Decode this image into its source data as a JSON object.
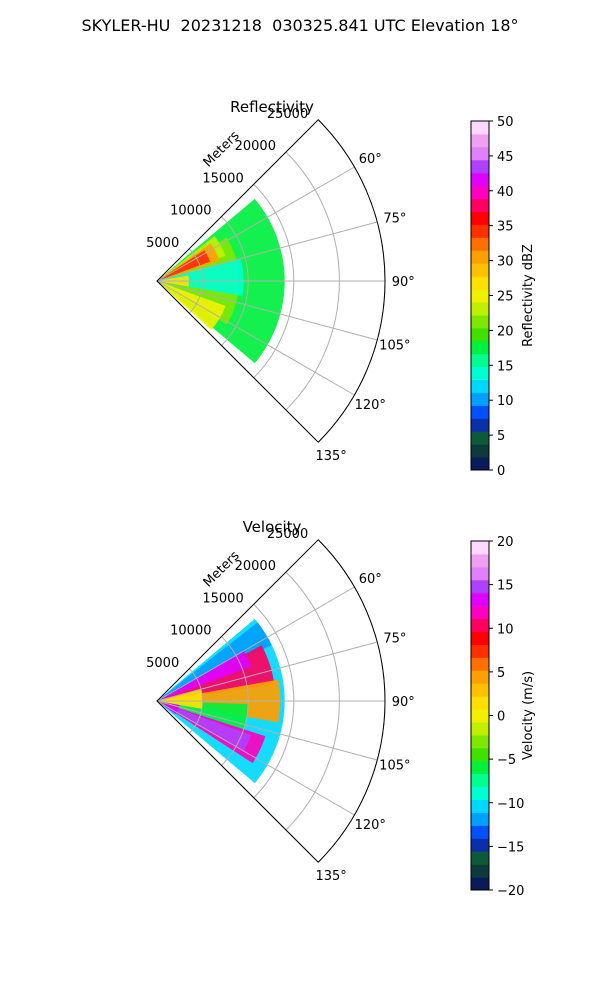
{
  "figure": {
    "title": "SKYLER-HU  20231218  030325.841 UTC Elevation 18°"
  },
  "chart_data": [
    {
      "type": "heatmap",
      "subtype": "polar-sector (PPI)",
      "title": "Reflectivity",
      "range_label": "Meters",
      "r_ticks": [
        5000,
        10000,
        15000,
        20000,
        25000
      ],
      "r_tick_labels": [
        "5000",
        "10000",
        "15000",
        "20000",
        "25000"
      ],
      "rlim": [
        0,
        25000
      ],
      "theta_ticks": [
        60,
        75,
        90,
        105,
        120,
        135
      ],
      "theta_tick_labels": [
        "60°",
        "75°",
        "90°",
        "105°",
        "120°",
        "135°"
      ],
      "theta_range": [
        45,
        135
      ],
      "grid": true,
      "colorbar": {
        "label": "Reflectivity dBZ",
        "min": 0,
        "max": 50,
        "ticks": [
          0,
          5,
          10,
          15,
          20,
          25,
          30,
          35,
          40,
          45,
          50
        ],
        "tick_labels": [
          "0",
          "5",
          "10",
          "15",
          "20",
          "25",
          "30",
          "35",
          "40",
          "45",
          "50"
        ],
        "colors": [
          "#0a1a5a",
          "#0d3a3a",
          "#0d5a3a",
          "#0a2fa8",
          "#0050ff",
          "#00a0ff",
          "#00d8ff",
          "#00ffd0",
          "#00ff90",
          "#00f040",
          "#40e000",
          "#80e800",
          "#c0f000",
          "#f0f000",
          "#ffe000",
          "#ffc000",
          "#ffa000",
          "#ff7000",
          "#ff3000",
          "#ff0000",
          "#ff0060",
          "#ff00c0",
          "#e000ff",
          "#b040ff",
          "#e080ff",
          "#f0a0f0",
          "#ffd8ff"
        ]
      },
      "echo_regions": [
        {
          "from_deg": 50,
          "to_deg": 130,
          "r_max": 14000,
          "value": 17
        },
        {
          "from_deg": 58,
          "to_deg": 122,
          "r_max": 9000,
          "value": 21
        },
        {
          "from_deg": 52,
          "to_deg": 70,
          "r_max": 8000,
          "value": 24
        },
        {
          "from_deg": 110,
          "to_deg": 132,
          "r_max": 8000,
          "value": 25
        },
        {
          "from_deg": 55,
          "to_deg": 72,
          "r_max": 7200,
          "value": 30
        },
        {
          "from_deg": 57,
          "to_deg": 70,
          "r_max": 6200,
          "value": 35
        },
        {
          "from_deg": 75,
          "to_deg": 100,
          "r_max": 9500,
          "value": 13
        },
        {
          "from_deg": 80,
          "to_deg": 100,
          "r_max": 3500,
          "value": 27
        }
      ]
    },
    {
      "type": "heatmap",
      "subtype": "polar-sector (PPI)",
      "title": "Velocity",
      "range_label": "Meters",
      "r_ticks": [
        5000,
        10000,
        15000,
        20000,
        25000
      ],
      "r_tick_labels": [
        "5000",
        "10000",
        "15000",
        "20000",
        "25000"
      ],
      "rlim": [
        0,
        25000
      ],
      "theta_ticks": [
        60,
        75,
        90,
        105,
        120,
        135
      ],
      "theta_tick_labels": [
        "60°",
        "75°",
        "90°",
        "105°",
        "120°",
        "135°"
      ],
      "theta_range": [
        45,
        135
      ],
      "grid": true,
      "colorbar": {
        "label": "Velocity (m/s)",
        "min": -20,
        "max": 20,
        "ticks": [
          -20,
          -15,
          -10,
          -5,
          0,
          5,
          10,
          15,
          20
        ],
        "tick_labels": [
          "−20",
          "−15",
          "−10",
          "−5",
          "0",
          "5",
          "10",
          "15",
          "20"
        ],
        "colors": [
          "#0a1a5a",
          "#0d3a3a",
          "#0d5a3a",
          "#0a2fa8",
          "#0050ff",
          "#00a0ff",
          "#00d8ff",
          "#00ffd0",
          "#00ff90",
          "#00f040",
          "#40e000",
          "#80e800",
          "#c0f000",
          "#f0f000",
          "#ffe000",
          "#ffc000",
          "#ffa000",
          "#ff7000",
          "#ff3000",
          "#ff0000",
          "#ff0060",
          "#ff00c0",
          "#e000ff",
          "#b040ff",
          "#e080ff",
          "#f0a0f0",
          "#ffd8ff"
        ]
      },
      "echo_regions": [
        {
          "from_deg": 50,
          "to_deg": 130,
          "r_max": 14000,
          "value": -11
        },
        {
          "from_deg": 52,
          "to_deg": 64,
          "r_max": 14000,
          "value": -12
        },
        {
          "from_deg": 62,
          "to_deg": 82,
          "r_max": 13000,
          "value": 10
        },
        {
          "from_deg": 60,
          "to_deg": 70,
          "r_max": 11000,
          "value": 14
        },
        {
          "from_deg": 80,
          "to_deg": 100,
          "r_max": 13500,
          "value": 4
        },
        {
          "from_deg": 92,
          "to_deg": 108,
          "r_max": 10000,
          "value": -6
        },
        {
          "from_deg": 108,
          "to_deg": 123,
          "r_max": 12500,
          "value": 12
        },
        {
          "from_deg": 110,
          "to_deg": 120,
          "r_max": 11000,
          "value": 15
        },
        {
          "from_deg": 75,
          "to_deg": 100,
          "r_max": 5000,
          "value": 2
        },
        {
          "from_deg": 100,
          "to_deg": 125,
          "r_max": 2500,
          "value": 14
        }
      ]
    }
  ]
}
